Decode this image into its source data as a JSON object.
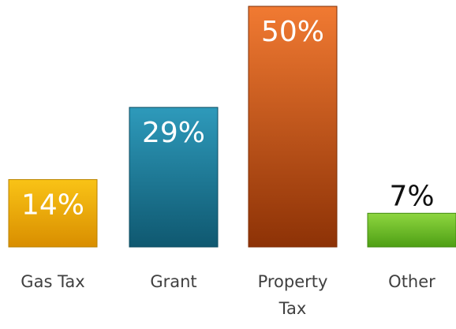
{
  "chart_data": {
    "type": "bar",
    "categories": [
      "Gas Tax",
      "Grant",
      "Property Tax",
      "Other"
    ],
    "values": [
      14,
      29,
      50,
      7
    ],
    "value_labels": [
      "14%",
      "29%",
      "50%",
      "7%"
    ],
    "title": "",
    "xlabel": "",
    "ylabel": "",
    "ylim": [
      0,
      50
    ],
    "grid": false,
    "legend": "none",
    "bar_colors": [
      {
        "top": "#f9c316",
        "bottom": "#d98e00",
        "stroke": "#b98200"
      },
      {
        "top": "#2e9abb",
        "bottom": "#0f5870",
        "stroke": "#0d4c61"
      },
      {
        "top": "#f17a32",
        "bottom": "#8d3206",
        "stroke": "#7e2d05"
      },
      {
        "top": "#8ed640",
        "bottom": "#4e9f14",
        "stroke": "#428a10"
      }
    ],
    "label_colors": [
      "#ffffff",
      "#ffffff",
      "#ffffff",
      "#111111"
    ],
    "label_inside": [
      true,
      true,
      true,
      false
    ]
  }
}
